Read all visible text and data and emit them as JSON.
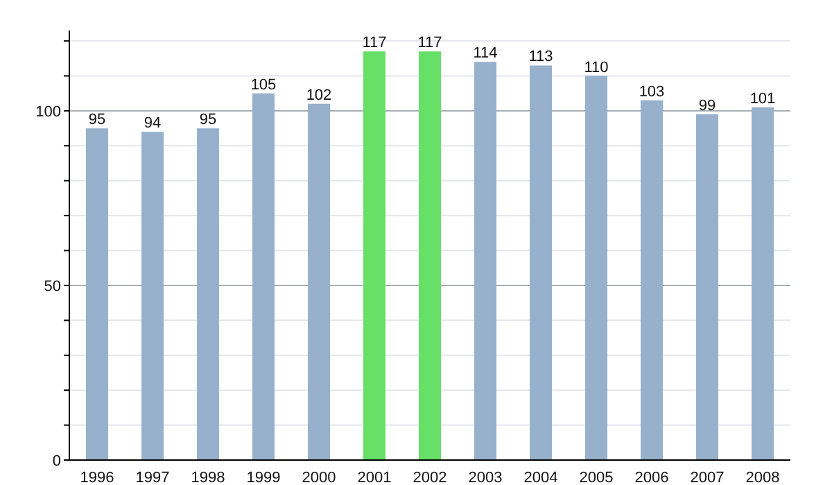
{
  "chart_data": {
    "type": "bar",
    "categories": [
      "1996",
      "1997",
      "1998",
      "1999",
      "2000",
      "2001",
      "2002",
      "2003",
      "2004",
      "2005",
      "2006",
      "2007",
      "2008"
    ],
    "values": [
      95,
      94,
      95,
      105,
      102,
      117,
      117,
      114,
      113,
      110,
      103,
      99,
      101
    ],
    "colors": [
      "#97b1cc",
      "#97b1cc",
      "#97b1cc",
      "#97b1cc",
      "#97b1cc",
      "#66e066",
      "#66e066",
      "#97b1cc",
      "#97b1cc",
      "#97b1cc",
      "#97b1cc",
      "#97b1cc",
      "#97b1cc"
    ],
    "ylim": [
      0,
      123
    ],
    "yticks": [
      0,
      {
        "value": 10,
        "label": null
      },
      {
        "value": 20,
        "label": null
      },
      {
        "value": 30,
        "label": null
      },
      {
        "value": 40,
        "label": null
      },
      50,
      {
        "value": 60,
        "label": null
      },
      {
        "value": 70,
        "label": null
      },
      {
        "value": 80,
        "label": null
      },
      {
        "value": 90,
        "label": null
      },
      100,
      {
        "value": 110,
        "label": null
      },
      {
        "value": 120,
        "label": null
      }
    ],
    "data_labels": true,
    "grid": true
  }
}
